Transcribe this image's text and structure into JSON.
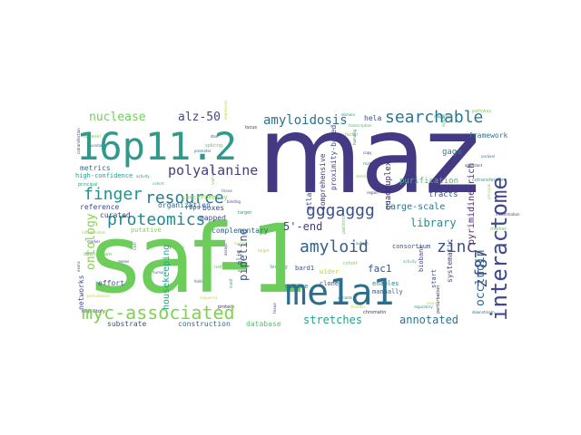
{
  "words": [
    {
      "text": "maz",
      "color": "#433a83"
    },
    {
      "text": "saf-1",
      "color": "#6ccd5a"
    },
    {
      "text": "me1a1",
      "color": "#2b6f8e"
    },
    {
      "text": "16p11.2",
      "color": "#2f9a8a"
    },
    {
      "text": "myc-associated",
      "color": "#7ed34f"
    },
    {
      "text": "interactome",
      "color": "#3f4889"
    },
    {
      "text": "proteomics",
      "color": "#25888e"
    },
    {
      "text": "searchable",
      "color": "#29788e"
    },
    {
      "text": "resource",
      "color": "#2a7b8e"
    },
    {
      "text": "finger",
      "color": "#20938c"
    },
    {
      "text": "amyloid",
      "color": "#35608d"
    },
    {
      "text": "gggaggg",
      "color": "#3b518b"
    },
    {
      "text": "zinc",
      "color": "#3c4f8a"
    },
    {
      "text": "zf87",
      "color": "#3f4a8a"
    },
    {
      "text": "polyalanine",
      "color": "#433d84"
    },
    {
      "text": "amyloidosis",
      "color": "#2d718e"
    },
    {
      "text": "nuclease",
      "color": "#73d056"
    },
    {
      "text": "alz-50",
      "color": "#3e4c8a"
    },
    {
      "text": "occludin",
      "color": "#32658e"
    },
    {
      "text": "library",
      "color": "#21908d"
    },
    {
      "text": "annotated",
      "color": "#2c738e"
    },
    {
      "text": "stretches",
      "color": "#20a486"
    },
    {
      "text": "ontology",
      "color": "#84d44b"
    },
    {
      "text": "5'-end",
      "color": "#433d84"
    },
    {
      "text": "fac1",
      "color": "#3b528b"
    },
    {
      "text": "pipeline",
      "color": "#3a538b"
    },
    {
      "text": "housekeeping",
      "color": "#22a785"
    },
    {
      "text": "pyrimidine-rich",
      "color": "#472c7a"
    },
    {
      "text": "large-scale",
      "color": "#2c738e"
    },
    {
      "text": "purification",
      "color": "#40bd72"
    },
    {
      "text": "quadruplex",
      "color": "#482475"
    },
    {
      "text": "tracts",
      "color": "#3e4a89"
    },
    {
      "text": "gaga",
      "color": "#277f8e"
    },
    {
      "text": "framework",
      "color": "#2a778e"
    },
    {
      "text": "systematic",
      "color": "#3f4788"
    },
    {
      "text": "construction",
      "color": "#31678e"
    },
    {
      "text": "database",
      "color": "#52c569"
    },
    {
      "text": "substrate",
      "color": "#3b528b"
    },
    {
      "text": "curated",
      "color": "#453882"
    },
    {
      "text": "reference",
      "color": "#3e4a89"
    },
    {
      "text": "complementary",
      "color": "#34618d"
    },
    {
      "text": "mapped",
      "color": "#3f4889"
    },
    {
      "text": "boxes",
      "color": "#414487"
    },
    {
      "text": "organization",
      "color": "#31688e"
    },
    {
      "text": "putative",
      "color": "#7fd34e"
    },
    {
      "text": "effort",
      "color": "#3a548c"
    },
    {
      "text": "networks",
      "color": "#3b528b"
    },
    {
      "text": "metrics",
      "color": "#2e6e8e"
    },
    {
      "text": "high-confidence",
      "color": "#1fa088"
    },
    {
      "text": "spectrometry",
      "color": "#8bd646"
    },
    {
      "text": "rbps",
      "color": "#3b518b"
    },
    {
      "text": "comprehensive",
      "color": "#46337f"
    },
    {
      "text": "proximity-based",
      "color": "#3f4889"
    },
    {
      "text": "atlas",
      "color": "#3f4889"
    },
    {
      "text": "bard1",
      "color": "#3e4989"
    },
    {
      "text": "genome",
      "color": "#2a768e"
    },
    {
      "text": "clone",
      "color": "#3e4989"
    },
    {
      "text": "wider",
      "color": "#b5de2b"
    },
    {
      "text": "manually",
      "color": "#32648e"
    },
    {
      "text": "enables",
      "color": "#26828e"
    },
    {
      "text": "consortium",
      "color": "#3b528b"
    },
    {
      "text": "hela",
      "color": "#3e4989"
    },
    {
      "text": "start",
      "color": "#3e4c8a"
    },
    {
      "text": "biobank",
      "color": "#3f4889"
    },
    {
      "text": "gli1",
      "color": "#3e4989"
    }
  ],
  "tiny_words": [
    "unravel",
    "abundant",
    "cotransfection",
    "principal",
    "inflammation",
    "marker",
    "downstream",
    "exons",
    "perturbation",
    "regulatory",
    "activity",
    "cohort",
    "variants",
    "tissue",
    "binding",
    "target",
    "nuclear",
    "assays",
    "isoforms",
    "folding",
    "sequence",
    "protein",
    "motif",
    "loci",
    "mouse",
    "human",
    "genes",
    "cell",
    "mrna",
    "dna",
    "splicing",
    "promoter",
    "expression",
    "locus",
    "domain",
    "transcription",
    "factor",
    "homolog",
    "copy",
    "number",
    "deletion",
    "region",
    "patients",
    "autism",
    "disorder",
    "chromatin",
    "mapping",
    "signals",
    "pathway"
  ],
  "faint_colors": [
    "#7fd34e",
    "#2a788e",
    "#3f4788",
    "#22a884",
    "#95d840",
    "#414487",
    "#5ec962",
    "#31688e",
    "#bddf26",
    "#482878",
    "#1f9e89",
    "#35b779"
  ]
}
